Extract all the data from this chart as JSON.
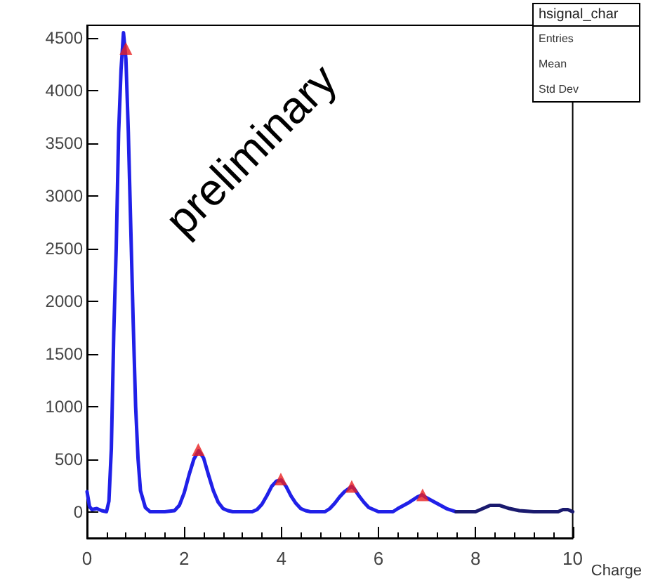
{
  "chart_data": {
    "type": "line",
    "xlabel": "Charge",
    "xlim": [
      0,
      10
    ],
    "xticks": [
      0,
      2,
      4,
      6,
      8,
      10
    ],
    "ylim": [
      -250,
      4620
    ],
    "yticks": [
      0,
      500,
      1000,
      1500,
      2000,
      2500,
      3000,
      3500,
      4000,
      4500
    ],
    "grid": false,
    "line_style": "solid",
    "marker": "none",
    "annotations": [
      "preliminary",
      "hsignal_char",
      "Entries",
      "Mean",
      "Std Dev"
    ],
    "series": [
      {
        "color": "#2020e8",
        "x": [
          0,
          0.05,
          0.1,
          0.2,
          0.3,
          0.4,
          0.45,
          0.5,
          0.55,
          0.6,
          0.65,
          0.7,
          0.75,
          0.8,
          0.85,
          0.9,
          0.95,
          1.0,
          1.05,
          1.1,
          1.2,
          1.3,
          1.6,
          1.8,
          1.9,
          2.0,
          2.1,
          2.2,
          2.3,
          2.4,
          2.5,
          2.6,
          2.7,
          2.8,
          2.9,
          3.0,
          3.4,
          3.5,
          3.6,
          3.7,
          3.8,
          3.9,
          4.0,
          4.1,
          4.2,
          4.3,
          4.4,
          4.5,
          4.6,
          4.9,
          5.0,
          5.1,
          5.2,
          5.3,
          5.45,
          5.5,
          5.6,
          5.7,
          5.8,
          5.9,
          6.0,
          6.3,
          6.4,
          6.6,
          6.8,
          6.9,
          7.0,
          7.2,
          7.4,
          7.6
        ],
        "values": [
          190,
          50,
          20,
          30,
          10,
          0,
          100,
          600,
          1700,
          2500,
          3600,
          4200,
          4550,
          4300,
          3600,
          2700,
          1800,
          1000,
          500,
          200,
          40,
          0,
          0,
          10,
          60,
          180,
          350,
          500,
          580,
          510,
          350,
          200,
          90,
          30,
          10,
          0,
          0,
          20,
          70,
          150,
          240,
          290,
          300,
          240,
          150,
          80,
          30,
          10,
          0,
          0,
          30,
          80,
          140,
          190,
          240,
          220,
          150,
          90,
          40,
          20,
          0,
          0,
          30,
          80,
          140,
          160,
          130,
          80,
          30,
          0
        ]
      },
      {
        "color": "#1a1a6e",
        "x": [
          7.6,
          8.0,
          8.1,
          8.3,
          8.5,
          8.7,
          8.9,
          9.2,
          9.7,
          9.8,
          9.9,
          10
        ],
        "values": [
          0,
          0,
          20,
          60,
          60,
          30,
          10,
          0,
          0,
          20,
          20,
          0
        ]
      },
      {
        "type": "scatter",
        "color": "#e82020",
        "marker": "triangle",
        "x": [
          0.8,
          2.29,
          3.99,
          5.45,
          6.91
        ],
        "values": [
          4400,
          590,
          310,
          240,
          160
        ]
      }
    ]
  }
}
